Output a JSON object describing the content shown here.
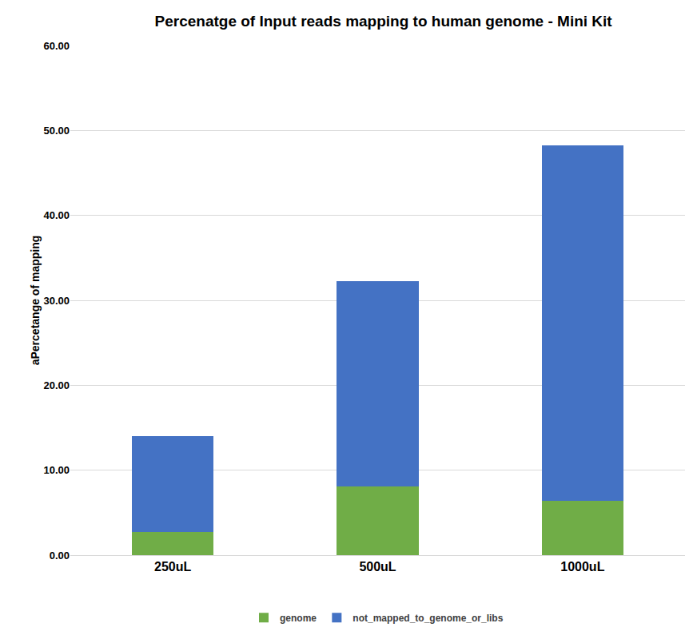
{
  "chart_data": {
    "type": "bar",
    "title": "Percenatge of Input reads mapping to human genome - Mini Kit",
    "y_label": "aPercetange of mapping",
    "categories": [
      "250uL",
      "500uL",
      "1000uL"
    ],
    "series": [
      {
        "name": "genome",
        "color": "#70ad47",
        "values": [
          2.7,
          8.1,
          6.4
        ]
      },
      {
        "name": "not_mapped_to_genome_or_libs",
        "color": "#4472c4",
        "values": [
          11.3,
          24.2,
          41.8
        ]
      }
    ],
    "stacked": true,
    "ylim": [
      0,
      60
    ],
    "yticks": [
      {
        "value": 0,
        "label": "0.00"
      },
      {
        "value": 10,
        "label": "10.00"
      },
      {
        "value": 20,
        "label": "20.00"
      },
      {
        "value": 30,
        "label": "30.00"
      },
      {
        "value": 40,
        "label": "40.00"
      },
      {
        "value": 50,
        "label": "50.00"
      },
      {
        "value": 60,
        "label": "60.00"
      }
    ],
    "grid": true,
    "legend": "bottom"
  }
}
